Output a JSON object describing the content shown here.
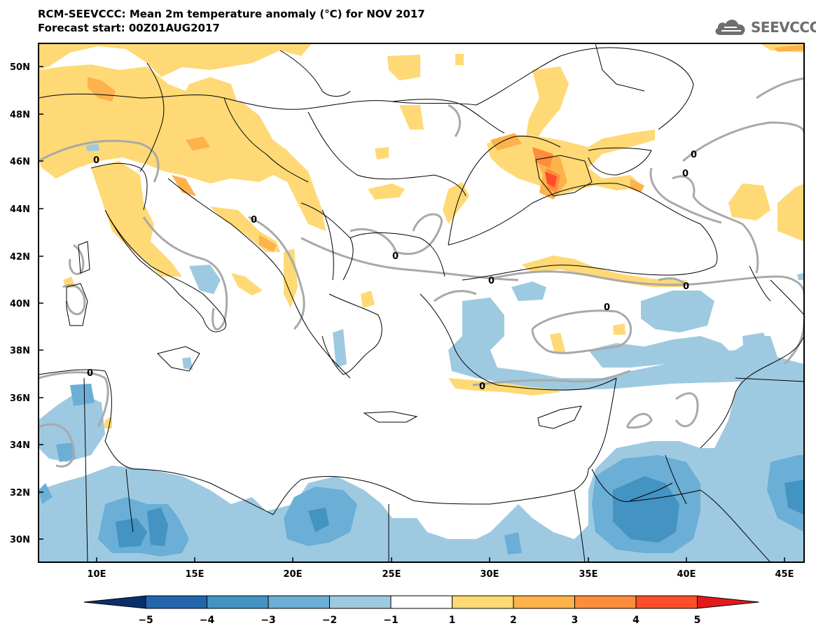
{
  "title": {
    "line1": "RCM-SEEVCCC: Mean 2m temperature anomaly (°C) for NOV 2017",
    "line2": "Forecast start: 00Z01AUG2017"
  },
  "logo": {
    "text": "SEEVCCC",
    "icon": "cloud-icon"
  },
  "map": {
    "lat_labels": [
      "50N",
      "48N",
      "46N",
      "44N",
      "42N",
      "40N",
      "38N",
      "36N",
      "34N",
      "32N",
      "30N"
    ],
    "lon_labels": [
      "10E",
      "15E",
      "20E",
      "25E",
      "30E",
      "35E",
      "40E",
      "45E"
    ],
    "contour_label": "0"
  },
  "colorbar": {
    "labels": [
      "−5",
      "−4",
      "−3",
      "−2",
      "−1",
      "1",
      "2",
      "3",
      "4",
      "5"
    ],
    "colors": [
      "#08306b",
      "#2166ac",
      "#4393c3",
      "#6baed6",
      "#9ecae1",
      "#ffffff",
      "#fed976",
      "#feb24c",
      "#fd8d3c",
      "#fc4e2a",
      "#e31a1c"
    ]
  },
  "palette": {
    "cool1": "#9ecae1",
    "cool2": "#6baed6",
    "cool3": "#4393c3",
    "warm1": "#fed976",
    "warm2": "#feb24c",
    "warm3": "#fd8d3c",
    "warm4": "#fc4e2a",
    "contour": "#a9a9a9"
  }
}
